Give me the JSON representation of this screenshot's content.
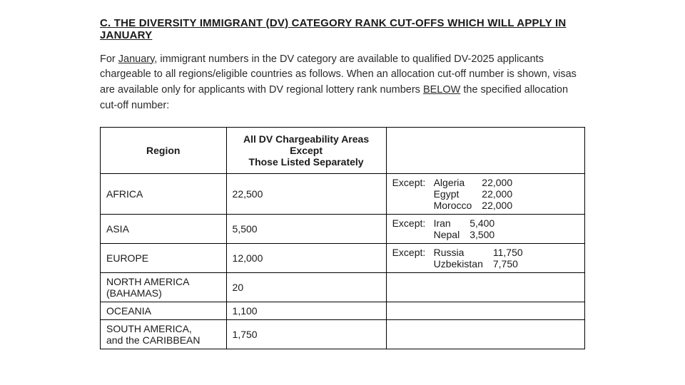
{
  "heading": "C.  THE DIVERSITY IMMIGRANT (DV) CATEGORY RANK CUT-OFFS WHICH WILL APPLY IN JANUARY",
  "intro_pre": "For ",
  "intro_month": "January",
  "intro_mid": ", immigrant numbers in the DV category are available to qualified DV-2025 applicants chargeable to all regions/eligible countries as follows. When an allocation cut-off number is shown, visas are available only for applicants with DV regional lottery rank numbers ",
  "intro_below": "BELOW",
  "intro_post": " the specified allocation cut-off number:",
  "table": {
    "headers": {
      "region": "Region",
      "cutoff_line1": "All DV Chargeability Areas",
      "cutoff_line2": "Except",
      "cutoff_line3": "Those Listed Separately",
      "exceptions": ""
    },
    "rows": [
      {
        "region": "AFRICA",
        "cutoff": "22,500",
        "except_label": "Except:",
        "exceptions": [
          {
            "country": "Algeria",
            "value": "22,000"
          },
          {
            "country": "Egypt",
            "value": "22,000"
          },
          {
            "country": "Morocco",
            "value": "22,000"
          }
        ]
      },
      {
        "region": "ASIA",
        "cutoff": "5,500",
        "except_label": "Except:",
        "exceptions": [
          {
            "country": "Iran",
            "value": "5,400"
          },
          {
            "country": "Nepal",
            "value": "3,500"
          }
        ]
      },
      {
        "region": "EUROPE",
        "cutoff": "12,000",
        "except_label": "Except:",
        "exceptions": [
          {
            "country": "Russia",
            "value": "11,750"
          },
          {
            "country": "Uzbekistan",
            "value": "7,750"
          }
        ]
      },
      {
        "region_line1": "NORTH AMERICA",
        "region_line2": "(BAHAMAS)",
        "cutoff": "20",
        "exceptions": []
      },
      {
        "region": "OCEANIA",
        "cutoff": "1,100",
        "exceptions": []
      },
      {
        "region_line1": "SOUTH AMERICA,",
        "region_line2": "and the CARIBBEAN",
        "cutoff": "1,750",
        "exceptions": []
      }
    ]
  }
}
